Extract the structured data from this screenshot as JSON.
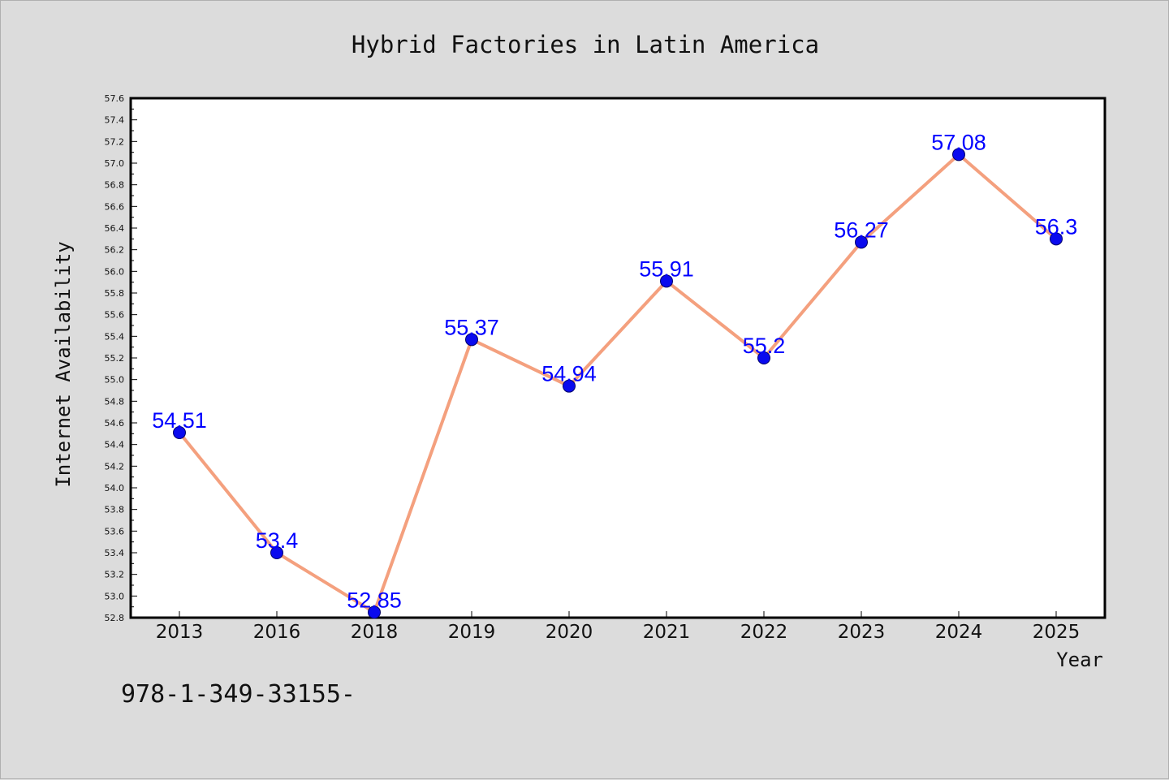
{
  "chart_data": {
    "type": "line",
    "title": "Hybrid Factories in Latin America",
    "xlabel": "Year",
    "ylabel": "Internet Availability",
    "categories": [
      "2013",
      "2016",
      "2018",
      "2019",
      "2020",
      "2021",
      "2022",
      "2023",
      "2024",
      "2025"
    ],
    "values": [
      54.51,
      53.4,
      52.85,
      55.37,
      54.94,
      55.91,
      55.2,
      56.27,
      57.08,
      56.3
    ],
    "data_labels": [
      "54.51",
      "53.4",
      "52.85",
      "55.37",
      "54.94",
      "55.91",
      "55.2",
      "56.27",
      "57.08",
      "56.3"
    ],
    "ylim": [
      52.8,
      57.6
    ],
    "ytick_step": 0.2,
    "yticks": [
      "52.8",
      "53.0",
      "53.2",
      "53.4",
      "53.6",
      "53.8",
      "54.0",
      "54.2",
      "54.4",
      "54.6",
      "54.8",
      "55.0",
      "55.2",
      "55.4",
      "55.6",
      "55.8",
      "56.0",
      "56.2",
      "56.4",
      "56.6",
      "56.8",
      "57.0",
      "57.2",
      "57.4",
      "57.6"
    ],
    "grid": false,
    "legend": "none",
    "colors": {
      "line": "#f4a07e",
      "marker": "#0a0aee",
      "label": "#0000ff",
      "background": "#dcdcdc",
      "plot_background": "#ffffff"
    }
  },
  "footer_code": "978-1-349-33155-"
}
